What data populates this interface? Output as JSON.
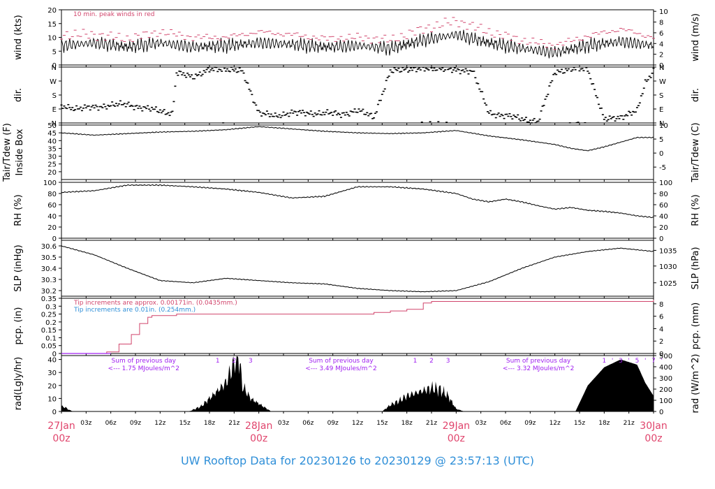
{
  "footer": "UW Rooftop Data for 20230126  to  20230129 @ 23:57:13  (UTC)",
  "colors": {
    "red": "#d1456c",
    "blue": "#2f8fd8",
    "purple": "#a020f0",
    "black": "#000000"
  },
  "x_axis": {
    "major": [
      {
        "h": 0,
        "day": "27Jan",
        "hour": "00z"
      },
      {
        "h": 24,
        "day": "28Jan",
        "hour": "00z"
      },
      {
        "h": 48,
        "day": "29Jan",
        "hour": "00z"
      },
      {
        "h": 72,
        "day": "30Jan",
        "hour": "00z"
      }
    ],
    "minor_hours": [
      3,
      6,
      9,
      12,
      15,
      18,
      21
    ],
    "minor_suffix": "z"
  },
  "chart_data": [
    {
      "id": "wind",
      "type": "line",
      "ylabel_left": "wind (kts)",
      "ylabel_right": "wind (m/s)",
      "ylim": [
        0,
        20
      ],
      "yticks_left": [
        "0",
        "5",
        "10",
        "15",
        "20"
      ],
      "yticks_right": [
        {
          "v": 0,
          "label": "0"
        },
        {
          "v": 3.888,
          "label": "2"
        },
        {
          "v": 7.776,
          "label": "4"
        },
        {
          "v": 11.664,
          "label": "6"
        },
        {
          "v": 15.552,
          "label": "8"
        },
        {
          "v": 19.44,
          "label": "10"
        }
      ],
      "annotation": "10 min. peak winds in red",
      "series": [
        {
          "role": "wind",
          "x": [
            0,
            4,
            8,
            12,
            16,
            20,
            24,
            28,
            32,
            36,
            40,
            44,
            48,
            52,
            56,
            60,
            64,
            68,
            72
          ],
          "y": [
            7,
            8,
            6.5,
            8,
            6.5,
            7,
            8,
            7.5,
            6.5,
            7,
            6,
            9,
            11,
            8,
            6,
            4.5,
            7,
            8.5,
            7
          ]
        },
        {
          "role": "peak",
          "x": [
            0,
            4,
            8,
            12,
            16,
            20,
            24,
            28,
            32,
            36,
            40,
            44,
            48,
            52,
            56,
            60,
            64,
            68,
            72
          ],
          "y": [
            11,
            11,
            9.5,
            12,
            10,
            10,
            12,
            11,
            9.5,
            10,
            9,
            13,
            16,
            12,
            9,
            7,
            10.5,
            13,
            10
          ]
        }
      ]
    },
    {
      "id": "dir",
      "type": "scatter",
      "ylabel_left": "dir.",
      "ylabel_right": "dir.",
      "ylim": [
        0,
        360
      ],
      "yticks_left": [
        "N",
        "E",
        "S",
        "W",
        "N"
      ],
      "series": [
        {
          "role": "direction",
          "x": [
            0,
            2,
            4,
            6,
            8,
            10,
            12,
            13.5,
            14,
            16,
            18,
            20,
            22,
            24,
            26,
            28,
            30,
            32,
            34,
            36,
            38,
            40,
            42,
            44,
            46,
            48,
            50,
            52,
            54,
            56,
            58,
            60,
            62,
            64,
            66,
            68,
            70,
            71,
            72
          ],
          "y": [
            105,
            95,
            100,
            115,
            120,
            95,
            80,
            60,
            320,
            300,
            340,
            350,
            330,
            70,
            40,
            70,
            60,
            65,
            55,
            80,
            40,
            330,
            350,
            345,
            355,
            335,
            340,
            60,
            50,
            25,
            10,
            330,
            345,
            350,
            20,
            40,
            75,
            260,
            340
          ]
        }
      ]
    },
    {
      "id": "temp",
      "type": "line",
      "ylabel_left": "Tair/Tdew (F)\nInside Box",
      "ylabel_right": "Tair/Tdew (C)",
      "ylim": [
        15,
        50
      ],
      "yticks_left": [
        "20",
        "25",
        "30",
        "35",
        "40",
        "45",
        "50"
      ],
      "yticks_right": [
        {
          "v": 23,
          "label": "-5"
        },
        {
          "v": 32,
          "label": "0"
        },
        {
          "v": 41,
          "label": "5"
        },
        {
          "v": 50,
          "label": "10"
        }
      ],
      "series": [
        {
          "role": "tair",
          "x": [
            0,
            4,
            8,
            12,
            16,
            20,
            24,
            28,
            32,
            36,
            40,
            44,
            48,
            52,
            56,
            60,
            62,
            64,
            66,
            68,
            70,
            72
          ],
          "y": [
            45,
            43.5,
            44.5,
            45.5,
            46,
            47,
            49,
            47.5,
            46,
            45,
            44.5,
            45,
            46.5,
            43,
            40.5,
            37.5,
            35,
            33.5,
            36,
            39,
            42,
            42
          ]
        }
      ]
    },
    {
      "id": "rh",
      "type": "line",
      "ylabel_left": "RH (%)",
      "ylabel_right": "RH (%)",
      "ylim": [
        0,
        100
      ],
      "yticks_left": [
        "0",
        "20",
        "40",
        "60",
        "80",
        "100"
      ],
      "series": [
        {
          "role": "rh",
          "x": [
            0,
            4,
            8,
            12,
            16,
            20,
            24,
            28,
            32,
            36,
            40,
            44,
            48,
            50,
            52,
            54,
            56,
            58,
            60,
            62,
            64,
            66,
            68,
            70,
            72
          ],
          "y": [
            82,
            85,
            95,
            95,
            92,
            88,
            82,
            72,
            75,
            92,
            92,
            88,
            80,
            70,
            65,
            70,
            65,
            58,
            52,
            55,
            50,
            48,
            45,
            40,
            37
          ]
        }
      ]
    },
    {
      "id": "slp",
      "type": "line",
      "ylabel_left": "SLP (inHg)",
      "ylabel_right": "SLP (hPa)",
      "ylim": [
        30.15,
        30.65
      ],
      "yticks_left": [
        "30.2",
        "30.3",
        "30.4",
        "30.5",
        "30.6"
      ],
      "yticks_right": [
        {
          "v": 30.27,
          "label": "1025"
        },
        {
          "v": 30.42,
          "label": "1030"
        },
        {
          "v": 30.56,
          "label": "1035"
        }
      ],
      "series": [
        {
          "role": "slp",
          "x": [
            0,
            4,
            8,
            12,
            16,
            20,
            24,
            28,
            32,
            36,
            40,
            44,
            48,
            52,
            56,
            60,
            64,
            68,
            72
          ],
          "y": [
            30.6,
            30.52,
            30.4,
            30.29,
            30.27,
            30.31,
            30.29,
            30.27,
            30.26,
            30.22,
            30.2,
            30.19,
            30.2,
            30.28,
            30.4,
            30.5,
            30.55,
            30.58,
            30.55
          ]
        }
      ]
    },
    {
      "id": "pcp",
      "type": "line",
      "ylabel_left": "pcp. (in)",
      "ylabel_right": "pcp. (mm)",
      "ylim": [
        0,
        0.35
      ],
      "yticks_left": [
        "0",
        "0.05",
        "0.1",
        "0.15",
        "0.2",
        "0.25",
        "0.3",
        "0.35"
      ],
      "yticks_right": [
        {
          "v": 0,
          "label": "0"
        },
        {
          "v": 0.0787,
          "label": "2"
        },
        {
          "v": 0.1575,
          "label": "4"
        },
        {
          "v": 0.2362,
          "label": "6"
        },
        {
          "v": 0.315,
          "label": "8"
        }
      ],
      "annotations": [
        {
          "text": "Tip increments are approx. 0.00171in. (0.0435mm.)",
          "color": "red"
        },
        {
          "text": "Tip increments are 0.01in. (0.254mm.)",
          "color": "blue"
        }
      ],
      "series": [
        {
          "role": "tips",
          "x": [
            0,
            4.5,
            5.5,
            7,
            8.5,
            9.5,
            10.5,
            11,
            14,
            28,
            38,
            40,
            42,
            44,
            45,
            60,
            72
          ],
          "y": [
            0,
            0,
            0.01,
            0.06,
            0.12,
            0.19,
            0.23,
            0.24,
            0.25,
            0.25,
            0.26,
            0.27,
            0.28,
            0.32,
            0.33,
            0.33,
            0.34
          ]
        },
        {
          "role": "purple",
          "x": [
            0,
            6
          ],
          "y": [
            0,
            0
          ]
        }
      ]
    },
    {
      "id": "rad",
      "type": "area",
      "ylabel_left": "rad(Lgly/hr)",
      "ylabel_right": "rad (W/m^2)",
      "ylim": [
        0,
        43
      ],
      "yticks_left": [
        "0",
        "10",
        "20",
        "30",
        "40"
      ],
      "yticks_right": [
        {
          "v": 0,
          "label": "0"
        },
        {
          "v": 8.6,
          "label": "100"
        },
        {
          "v": 17.2,
          "label": "200"
        },
        {
          "v": 25.8,
          "label": "300"
        },
        {
          "v": 34.4,
          "label": "400"
        },
        {
          "v": 43,
          "label": "500"
        }
      ],
      "day_sums": [
        {
          "x": 10,
          "line1": "Sum of previous day",
          "line2": "<--- 1.75 MJoules/m^2",
          "marks": [
            {
              "x": 19,
              "t": "1"
            },
            {
              "x": 21,
              "t": "2"
            },
            {
              "x": 23,
              "t": "3"
            }
          ]
        },
        {
          "x": 34,
          "line1": "Sum of previous day",
          "line2": "<--- 3.49 MJoules/m^2",
          "marks": [
            {
              "x": 43,
              "t": "1"
            },
            {
              "x": 45,
              "t": "2"
            },
            {
              "x": 47,
              "t": "3"
            }
          ]
        },
        {
          "x": 58,
          "line1": "Sum of previous day",
          "line2": "<--- 3.32 MJoules/m^2",
          "marks": [
            {
              "x": 66,
              "t": "1"
            },
            {
              "x": 67,
              "t": "'"
            },
            {
              "x": 68,
              "t": "3"
            },
            {
              "x": 69,
              "t": "'"
            },
            {
              "x": 70,
              "t": "5"
            },
            {
              "x": 71,
              "t": "'"
            },
            {
              "x": 72,
              "t": "7"
            },
            {
              "x": 73,
              "t": "'"
            }
          ]
        }
      ],
      "series": [
        {
          "role": "radiation",
          "x": [
            0,
            0.5,
            1,
            1.5,
            15.5,
            17,
            18,
            19,
            20,
            20.5,
            21,
            21.5,
            22,
            23,
            24,
            25,
            25.5,
            39,
            40,
            41,
            42,
            43,
            44,
            45,
            46,
            47,
            48,
            49,
            62.5,
            64,
            66,
            68,
            70,
            71,
            72
          ],
          "y": [
            4,
            3,
            1,
            0,
            0,
            4,
            10,
            16,
            22,
            30,
            38,
            46,
            20,
            10,
            6,
            2,
            0,
            0,
            5,
            8,
            12,
            14,
            16,
            18,
            17,
            12,
            2,
            0,
            0,
            20,
            34,
            40,
            36,
            22,
            12
          ]
        }
      ]
    }
  ]
}
